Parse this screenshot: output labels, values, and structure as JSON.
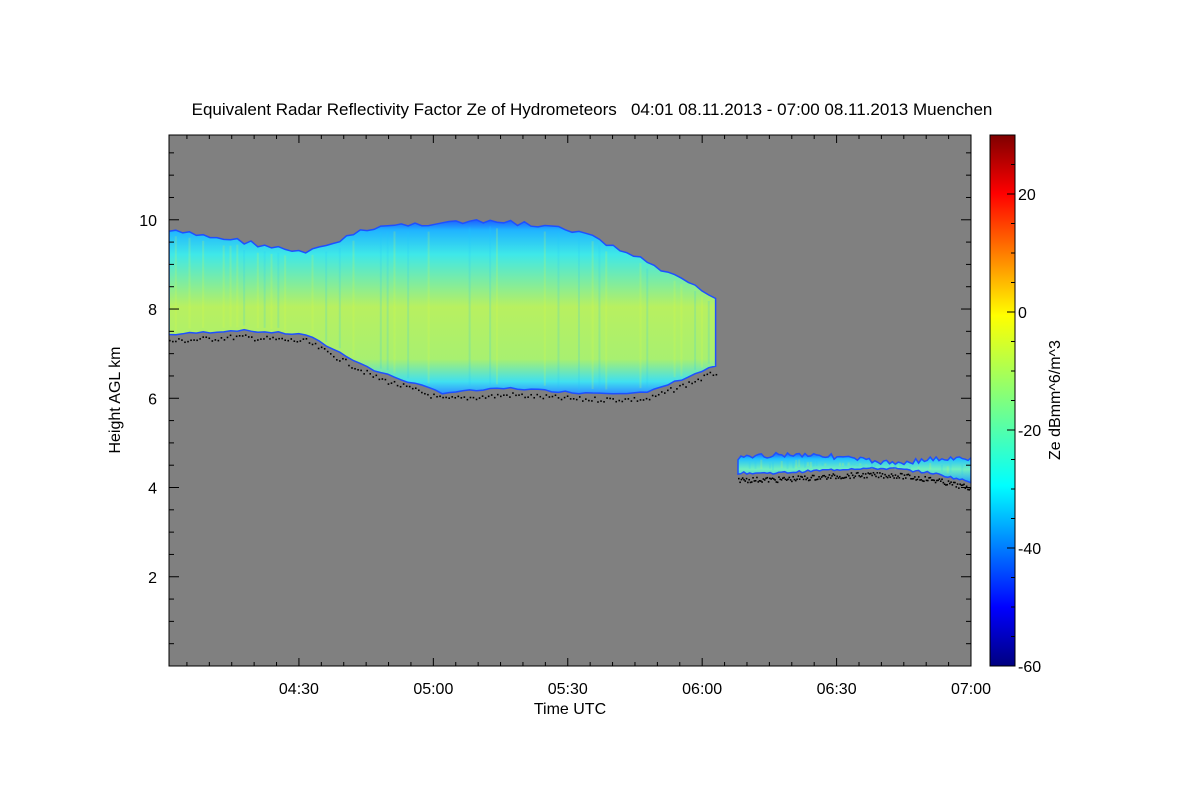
{
  "chart_data": {
    "type": "heatmap",
    "title": "Equivalent Radar Reflectivity Factor Ze of Hydrometeors   04:01 08.11.2013 - 07:00 08.11.2013 Muenchen",
    "xlabel": "Time UTC",
    "ylabel": "Height AGL km",
    "colorbar_label": "Ze dBmm^6/m^3",
    "x_range": [
      "04:01",
      "07:00"
    ],
    "y_range": [
      0,
      11.9
    ],
    "x_ticks": [
      "04:30",
      "05:00",
      "05:30",
      "06:00",
      "06:30",
      "07:00"
    ],
    "y_ticks": [
      2,
      4,
      6,
      8,
      10
    ],
    "colorbar_range": [
      -60,
      30
    ],
    "colorbar_ticks": [
      -60,
      -40,
      -20,
      0,
      20
    ],
    "background_color": "#808080",
    "colormap": "jet",
    "cloud_layers": [
      {
        "name": "upper-cloud",
        "time_start": "04:01",
        "time_end": "06:03",
        "top_km": [
          9.8,
          9.6,
          9.3,
          9.9,
          10.0,
          10.0,
          9.8,
          9.1,
          8.3
        ],
        "base_km": [
          7.4,
          7.5,
          7.4,
          6.6,
          6.1,
          6.2,
          6.1,
          6.1,
          6.7
        ],
        "core_ze_dbz": -10
      },
      {
        "name": "lower-cloud",
        "time_start": "06:08",
        "time_end": "07:00",
        "top_km": [
          4.7,
          4.8,
          4.8,
          4.7,
          4.6,
          4.7,
          4.7
        ],
        "base_km": [
          4.3,
          4.3,
          4.35,
          4.4,
          4.4,
          4.3,
          4.1
        ],
        "core_ze_dbz": -20
      }
    ],
    "cloud_base_markers_color": "#000000"
  }
}
